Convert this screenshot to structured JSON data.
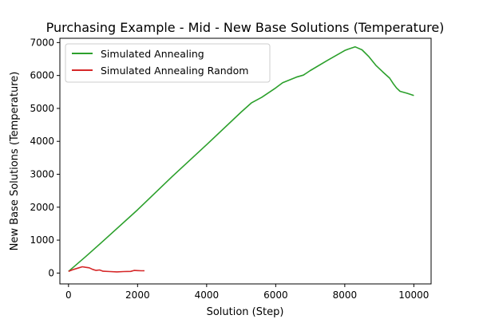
{
  "chart_data": {
    "type": "line",
    "title": "Purchasing Example - Mid - New Base Solutions (Temperature)",
    "xlabel": "Solution (Step)",
    "ylabel": "New Base Solutions (Temperature)",
    "xlim": [
      -250,
      10500
    ],
    "ylim": [
      -330,
      7130
    ],
    "xticks": [
      0,
      2000,
      4000,
      6000,
      8000,
      10000
    ],
    "yticks": [
      0,
      1000,
      2000,
      3000,
      4000,
      5000,
      6000,
      7000
    ],
    "grid": false,
    "legend_position": "upper-left",
    "series": [
      {
        "name": "Simulated Annealing",
        "color": "#2ca02c",
        "x": [
          0,
          500,
          1000,
          2000,
          3000,
          4000,
          5000,
          5300,
          5600,
          6000,
          6200,
          6600,
          6800,
          7000,
          7500,
          8000,
          8100,
          8300,
          8500,
          8700,
          8900,
          9100,
          9300,
          9400,
          9500,
          9600,
          9800,
          10000
        ],
        "y": [
          50,
          500,
          970,
          1920,
          2930,
          3900,
          4890,
          5170,
          5340,
          5620,
          5780,
          5950,
          6010,
          6150,
          6460,
          6760,
          6800,
          6870,
          6780,
          6570,
          6310,
          6110,
          5920,
          5760,
          5620,
          5520,
          5460,
          5390
        ]
      },
      {
        "name": "Simulated Annealing Random",
        "color": "#d62728",
        "x": [
          0,
          150,
          300,
          400,
          500,
          600,
          700,
          800,
          900,
          1000,
          1200,
          1400,
          1600,
          1800,
          1900,
          2000,
          2100,
          2200
        ],
        "y": [
          50,
          110,
          160,
          190,
          175,
          160,
          110,
          80,
          95,
          55,
          45,
          35,
          45,
          50,
          80,
          75,
          70,
          70
        ]
      }
    ]
  }
}
